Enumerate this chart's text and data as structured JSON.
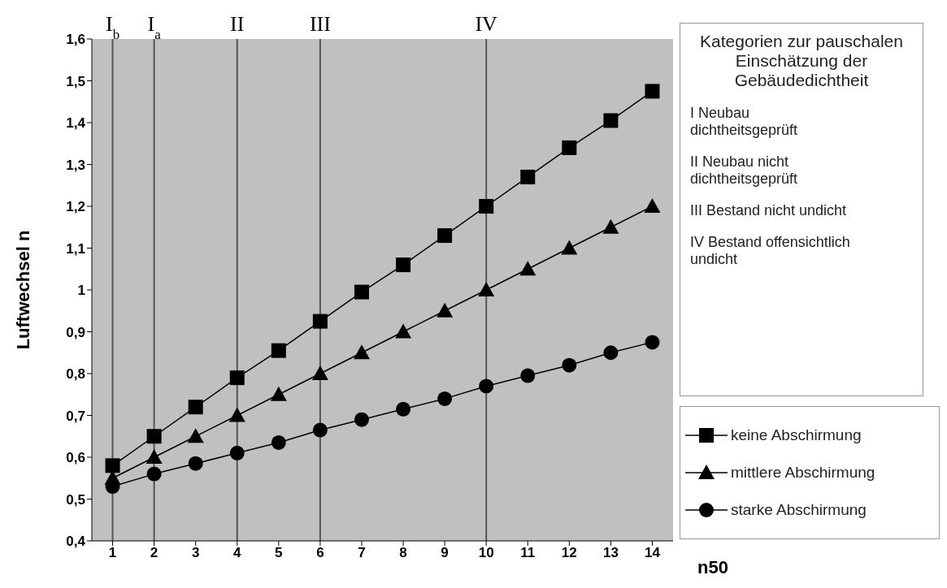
{
  "chart_data": {
    "type": "line",
    "xlabel": "n50",
    "ylabel": "Luftwechsel   n",
    "x": [
      1,
      2,
      3,
      4,
      5,
      6,
      7,
      8,
      9,
      10,
      11,
      12,
      13,
      14
    ],
    "xlim": [
      0.5,
      14.5
    ],
    "xticks": [
      1,
      2,
      3,
      4,
      5,
      6,
      7,
      8,
      9,
      10,
      11,
      12,
      13,
      14
    ],
    "ylim": [
      0.4,
      1.6
    ],
    "yticks": [
      {
        "value": 0.4,
        "label": "0,4"
      },
      {
        "value": 0.5,
        "label": "0,5"
      },
      {
        "value": 0.6,
        "label": "0,6"
      },
      {
        "value": 0.7,
        "label": "0,7"
      },
      {
        "value": 0.8,
        "label": "0,8"
      },
      {
        "value": 0.9,
        "label": "0,9"
      },
      1,
      {
        "value": 1.1,
        "label": "1,1"
      },
      {
        "value": 1.2,
        "label": "1,2"
      },
      {
        "value": 1.3,
        "label": "1,3"
      },
      {
        "value": 1.4,
        "label": "1,4"
      },
      {
        "value": 1.5,
        "label": "1,5"
      },
      {
        "value": 1.6,
        "label": "1,6"
      }
    ],
    "series": [
      {
        "name": "keine Abschirmung",
        "color": "#000000",
        "marker": "square",
        "values": [
          0.58,
          0.65,
          0.72,
          0.79,
          0.855,
          0.925,
          0.995,
          1.06,
          1.13,
          1.2,
          1.27,
          1.34,
          1.405,
          1.475
        ]
      },
      {
        "name": "mittlere Abschirmung",
        "color": "#000000",
        "marker": "triangle",
        "values": [
          0.55,
          0.6,
          0.65,
          0.7,
          0.75,
          0.8,
          0.85,
          0.9,
          0.95,
          1.0,
          1.05,
          1.1,
          1.15,
          1.2
        ]
      },
      {
        "name": "starke Abschirmung",
        "color": "#000000",
        "marker": "circle",
        "values": [
          0.53,
          0.56,
          0.585,
          0.61,
          0.635,
          0.665,
          0.69,
          0.715,
          0.74,
          0.77,
          0.795,
          0.82,
          0.85,
          0.875
        ]
      }
    ],
    "ref_lines": [
      {
        "axis": "x",
        "value": 1,
        "label": "I$_{b}$",
        "color": "#555555"
      },
      {
        "axis": "x",
        "value": 2,
        "label": "I$_{a}$",
        "color": "#555555"
      },
      {
        "axis": "x",
        "value": 4,
        "label": "II",
        "color": "#555555"
      },
      {
        "axis": "x",
        "value": 6,
        "label": "III",
        "color": "#555555"
      },
      {
        "axis": "x",
        "value": 10,
        "label": "IV",
        "color": "#555555"
      }
    ],
    "annotations": [
      "Kategorien zur pauschalen Einschätzung der Gebäudedichtheit",
      "I Neubau dichtheitsgeprüft",
      "II Neubau nicht dichtheitsgeprüft",
      "III Bestand nicht undicht",
      "IV Bestand offensichtlich undicht"
    ],
    "grid": false,
    "legend": "right",
    "line_style": "solid"
  }
}
